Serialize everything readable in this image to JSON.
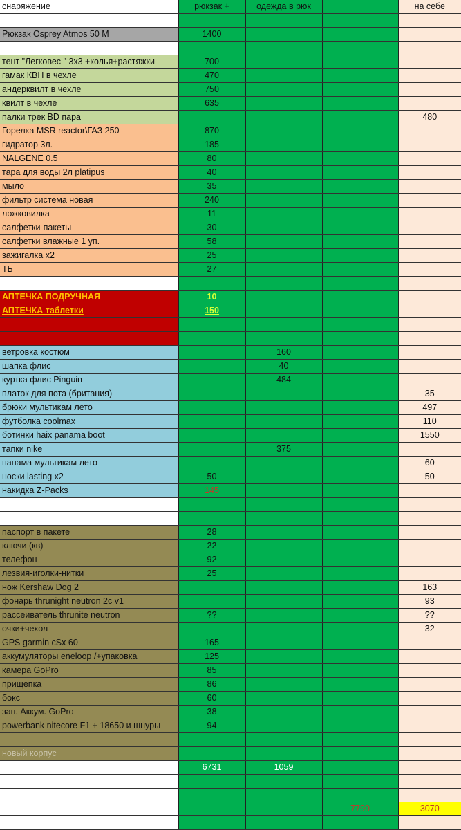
{
  "colors": {
    "green": "#00b050",
    "peach": "#fde9d9",
    "light_green": "#c4d79b",
    "orange": "#fabf8f",
    "gray": "#a6a6a6",
    "red": "#c00000",
    "blue": "#92cddc",
    "olive": "#948a54",
    "highlight": "#ffff00"
  },
  "header": {
    "a": "снаряжение",
    "b": "рюкзак +",
    "c": "одежда в рюк",
    "d": "",
    "e": "на себе"
  },
  "rows": [
    {
      "s": "white",
      "a": ""
    },
    {
      "s": "gray",
      "a": "Рюкзак Osprey Atmos 50 M",
      "b": "1400"
    },
    {
      "s": "white",
      "a": ""
    },
    {
      "s": "lgreen",
      "a": "тент \"Легковес \" 3х3 +колья+растяжки",
      "b": "700"
    },
    {
      "s": "lgreen",
      "a": "гамак КВН в чехле",
      "b": "470"
    },
    {
      "s": "lgreen",
      "a": "андерквилт в чехле",
      "b": "750"
    },
    {
      "s": "lgreen",
      "a": "квилт в чехле",
      "b": "635"
    },
    {
      "s": "lgreen",
      "a": "палки трек BD пара",
      "e": "480"
    },
    {
      "s": "orange",
      "a": "Горелка MSR reactor\\ГАЗ 250",
      "b": "870"
    },
    {
      "s": "orange",
      "a": "гидратор  3л.",
      "b": "185"
    },
    {
      "s": "orange",
      "a": "NALGENE 0.5",
      "b": "80"
    },
    {
      "s": "orange",
      "a": "тара для воды 2л platipus",
      "b": "40"
    },
    {
      "s": "orange",
      "a": "мыло",
      "b": "35"
    },
    {
      "s": "orange",
      "a": "фильтр система новая",
      "b": "240"
    },
    {
      "s": "orange",
      "a": "ложковилка",
      "b": "11"
    },
    {
      "s": "orange",
      "a": "салфетки-пакеты",
      "b": "30"
    },
    {
      "s": "orange",
      "a": "салфетки влажные 1 уп.",
      "b": "58"
    },
    {
      "s": "orange",
      "a": "зажигалка х2",
      "b": "25"
    },
    {
      "s": "orange",
      "a": "ТБ",
      "b": "27"
    },
    {
      "s": "white",
      "a": ""
    },
    {
      "s": "red",
      "a": "АПТЕЧКА  ПОДРУЧНАЯ",
      "b": "10",
      "bc": "c-yellowgreen"
    },
    {
      "s": "red",
      "a": "АПТЕЧКА таблетки",
      "au": true,
      "b": "150",
      "bc": "c-yellowgreen u"
    },
    {
      "s": "red",
      "a": ""
    },
    {
      "s": "red",
      "a": ""
    },
    {
      "s": "blue",
      "a": "ветровка костюм",
      "c": "160"
    },
    {
      "s": "blue",
      "a": "шапка  флис",
      "c": "40"
    },
    {
      "s": "blue",
      "a": "куртка флис Pinguin",
      "c": "484"
    },
    {
      "s": "blue",
      "a": "платок для пота (британия)",
      "e": "35"
    },
    {
      "s": "blue",
      "a": "брюки мультикам лето",
      "e": "497"
    },
    {
      "s": "blue",
      "a": "футболка coolmax",
      "e": "110"
    },
    {
      "s": "blue",
      "a": "ботинки haix panama boot",
      "e": "1550"
    },
    {
      "s": "blue",
      "a": "тапки nike",
      "c": "375"
    },
    {
      "s": "blue",
      "a": "панама мультикам лето",
      "e": "60"
    },
    {
      "s": "blue",
      "a": "носки lasting x2",
      "b": "50",
      "e": "50"
    },
    {
      "s": "blue",
      "a": "накидка Z-Packs",
      "b": "145",
      "bc": "c-red"
    },
    {
      "s": "white",
      "a": ""
    },
    {
      "s": "white",
      "a": ""
    },
    {
      "s": "olive",
      "a": "паспорт в пакете",
      "b": "28"
    },
    {
      "s": "olive",
      "a": "ключи (кв)",
      "b": "22"
    },
    {
      "s": "olive",
      "a": "телефон",
      "b": "92"
    },
    {
      "s": "olive",
      "a": "лезвия-иголки-нитки",
      "b": "25"
    },
    {
      "s": "olive",
      "a": "нож Kershaw Dog 2",
      "e": "163"
    },
    {
      "s": "olive",
      "a": "фонарь thrunight neutron 2c v1",
      "e": "93"
    },
    {
      "s": "olive",
      "a": "рассеиватель thrunite neutron",
      "b": "??",
      "e": "??"
    },
    {
      "s": "olive",
      "a": "очки+чехол",
      "e": "32"
    },
    {
      "s": "olive",
      "a": "GPS garmin cSx 60",
      "b": "165"
    },
    {
      "s": "olive",
      "a": "аккумуляторы eneloop   /+упаковка",
      "b": "125"
    },
    {
      "s": "olive",
      "a": "камера GoPro",
      "b": "85"
    },
    {
      "s": "olive",
      "a": "прищепка",
      "b": "86"
    },
    {
      "s": "olive",
      "a": "бокс",
      "b": "60"
    },
    {
      "s": "olive",
      "a": "зап. Аккум.  GoPro",
      "b": "38"
    },
    {
      "s": "olive",
      "a": "powerbank nitecore F1 + 18650 и шнуры",
      "b": "94"
    },
    {
      "s": "olive",
      "a": ""
    },
    {
      "s": "olive",
      "a": "новый корпус",
      "af": true
    },
    {
      "s": "white",
      "a": "",
      "b": "6731",
      "bc": "c-white",
      "c": "1059",
      "cc": "c-white"
    },
    {
      "s": "white",
      "a": ""
    },
    {
      "s": "white",
      "a": ""
    },
    {
      "s": "white",
      "a": "",
      "d": "7790",
      "dc": "c-red",
      "e": "3070",
      "ec": "c-red bg-yellow"
    },
    {
      "s": "white",
      "a": ""
    }
  ]
}
